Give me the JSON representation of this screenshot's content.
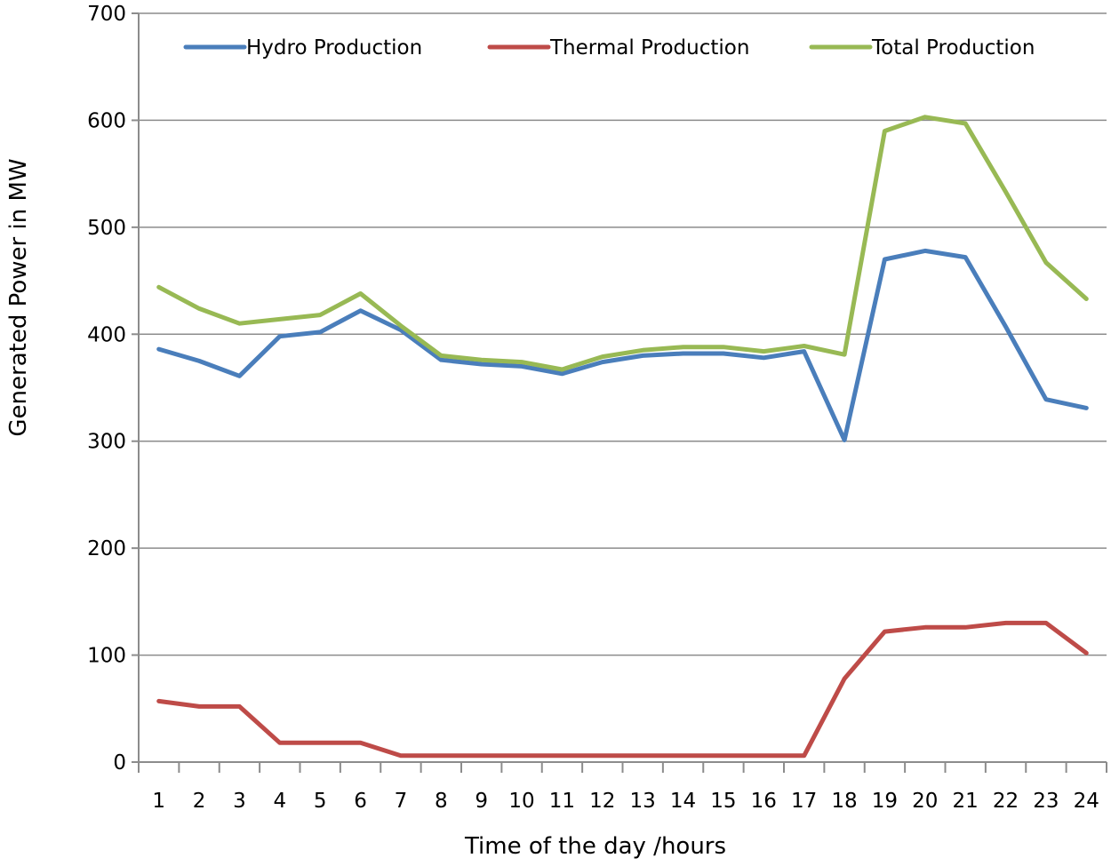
{
  "chart_data": {
    "type": "line",
    "title": "",
    "xlabel": "Time of the day /hours",
    "ylabel": "Generated Power in MW",
    "ylim": [
      0,
      700
    ],
    "yticks": [
      0,
      100,
      200,
      300,
      400,
      500,
      600,
      700
    ],
    "grid": true,
    "legend_position": "top",
    "x": [
      1,
      2,
      3,
      4,
      5,
      6,
      7,
      8,
      9,
      10,
      11,
      12,
      13,
      14,
      15,
      16,
      17,
      18,
      19,
      20,
      21,
      22,
      23,
      24
    ],
    "series": [
      {
        "name": "Hydro Production",
        "color": "#4a7ebb",
        "values": [
          386,
          375,
          361,
          398,
          402,
          422,
          404,
          376,
          372,
          370,
          363,
          374,
          380,
          382,
          382,
          378,
          384,
          301,
          470,
          478,
          472,
          407,
          339,
          331
        ]
      },
      {
        "name": "Thermal Production",
        "color": "#be4b48",
        "values": [
          57,
          52,
          52,
          18,
          18,
          18,
          6,
          6,
          6,
          6,
          6,
          6,
          6,
          6,
          6,
          6,
          6,
          78,
          122,
          126,
          126,
          130,
          130,
          102
        ]
      },
      {
        "name": "Total Production",
        "color": "#98b954",
        "values": [
          444,
          424,
          410,
          414,
          418,
          438,
          408,
          380,
          376,
          374,
          367,
          379,
          385,
          388,
          388,
          384,
          389,
          381,
          590,
          603,
          597,
          533,
          467,
          433
        ]
      }
    ]
  }
}
